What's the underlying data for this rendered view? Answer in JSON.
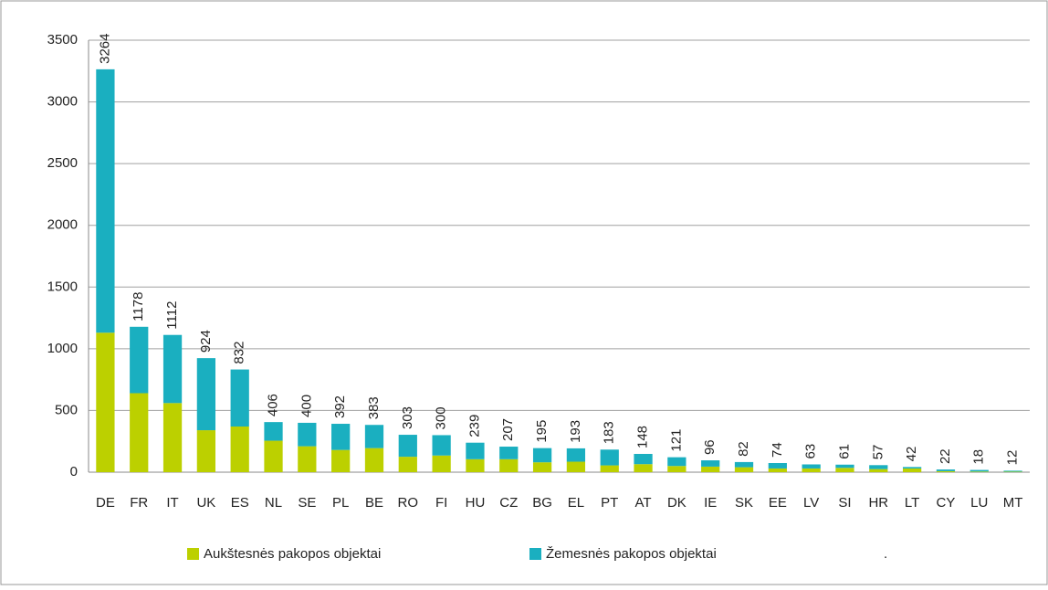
{
  "chart_data": {
    "type": "stacked_bar",
    "categories": [
      "DE",
      "FR",
      "IT",
      "UK",
      "ES",
      "NL",
      "SE",
      "PL",
      "BE",
      "RO",
      "FI",
      "HU",
      "CZ",
      "BG",
      "EL",
      "PT",
      "AT",
      "DK",
      "IE",
      "SK",
      "EE",
      "LV",
      "SI",
      "HR",
      "LT",
      "CY",
      "LU",
      "MT"
    ],
    "series": [
      {
        "name": "Aukštesnės pakopos objektai",
        "color": "#bcd000",
        "values": [
          1130,
          640,
          560,
          340,
          370,
          255,
          210,
          180,
          195,
          125,
          135,
          105,
          105,
          80,
          85,
          55,
          65,
          50,
          45,
          40,
          30,
          30,
          35,
          25,
          30,
          8,
          5,
          4
        ]
      },
      {
        "name": "Žemesnės pakopos objektai",
        "color": "#1aafc0",
        "values": [
          2134,
          538,
          552,
          584,
          462,
          151,
          190,
          212,
          188,
          178,
          165,
          134,
          102,
          115,
          108,
          128,
          83,
          71,
          51,
          42,
          44,
          33,
          26,
          32,
          12,
          14,
          13,
          8
        ]
      }
    ],
    "totals": [
      3264,
      1178,
      1112,
      924,
      832,
      406,
      400,
      392,
      383,
      303,
      300,
      239,
      207,
      195,
      193,
      183,
      148,
      121,
      96,
      82,
      74,
      63,
      61,
      57,
      42,
      22,
      18,
      12
    ],
    "legend_note": ".",
    "ylim": [
      0,
      3500
    ],
    "yticks": [
      0,
      500,
      1000,
      1500,
      2000,
      2500,
      3000,
      3500
    ],
    "grid": true
  }
}
